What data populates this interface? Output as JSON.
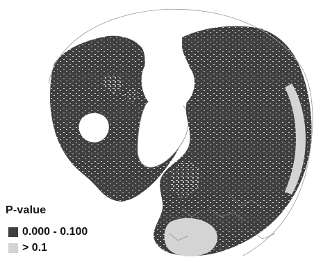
{
  "legend": {
    "title": "P-value",
    "items": [
      {
        "label": "0.000 - 0.100",
        "color": "#3f3f3f"
      },
      {
        "label": "> 0.1",
        "color": "#d4d4d4"
      }
    ]
  },
  "map": {
    "projection": "north-polar",
    "colors": {
      "significant": "#3f3f3f",
      "not_significant": "#d4d4d4",
      "boundaries": "#888888",
      "ocean": "#ffffff"
    }
  }
}
